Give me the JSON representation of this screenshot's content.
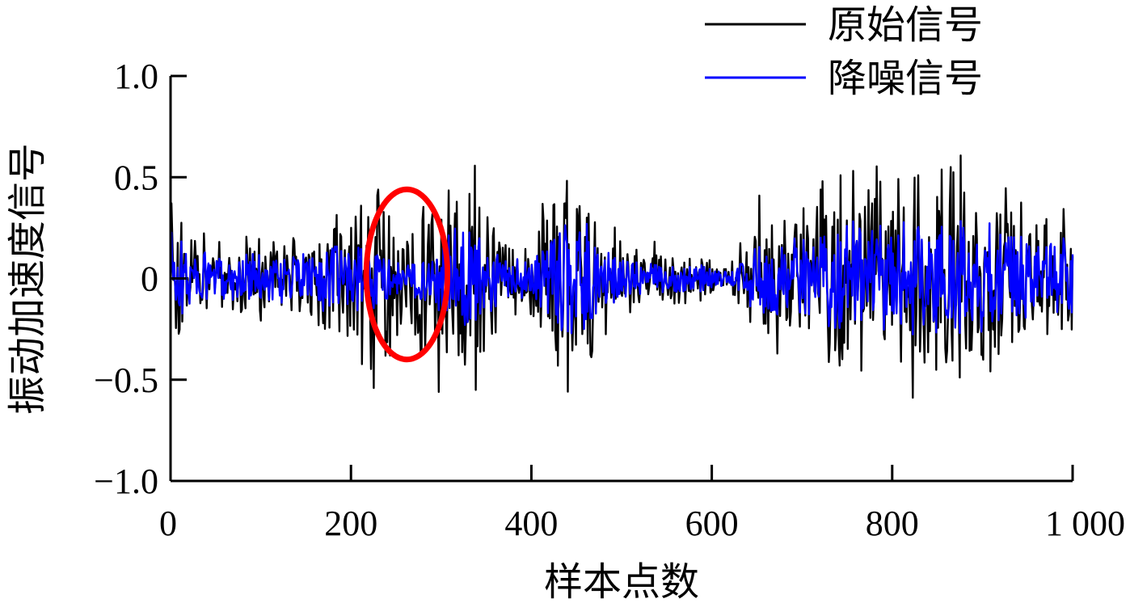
{
  "chart_data": {
    "type": "line",
    "title": "",
    "xlabel": "样本点数",
    "ylabel": "振动加速度信号",
    "xlim": [
      0,
      1000
    ],
    "ylim": [
      -1.0,
      1.0
    ],
    "x_ticks": [
      0,
      200,
      400,
      600,
      800,
      1000
    ],
    "x_tick_labels": [
      "0",
      "200",
      "400",
      "600",
      "800",
      "1 000"
    ],
    "y_ticks": [
      1.0,
      0.5,
      0,
      -0.5,
      -1.0
    ],
    "y_tick_labels": [
      "1.0",
      "0.5",
      "0",
      "−0.5",
      "−1.0"
    ],
    "grid": false,
    "legend_position": "top-right",
    "series": [
      {
        "name": "原始信号",
        "color": "#000000",
        "x_range": [
          0,
          1000
        ],
        "num_points": 1000,
        "envelope": {
          "x": [
            0,
            20,
            50,
            100,
            150,
            200,
            230,
            260,
            300,
            330,
            360,
            400,
            430,
            460,
            500,
            550,
            600,
            620,
            650,
            700,
            750,
            800,
            850,
            870,
            900,
            950,
            1000
          ],
          "amplitude": [
            0.45,
            0.3,
            0.15,
            0.22,
            0.2,
            0.45,
            0.55,
            0.25,
            0.5,
            0.65,
            0.3,
            0.15,
            0.55,
            0.45,
            0.2,
            0.15,
            0.1,
            0.05,
            0.35,
            0.35,
            0.55,
            0.5,
            0.55,
            0.55,
            0.5,
            0.35,
            0.3
          ]
        }
      },
      {
        "name": "降噪信号",
        "color": "#0000ff",
        "x_range": [
          0,
          1000
        ],
        "num_points": 1000,
        "envelope": {
          "x": [
            0,
            20,
            50,
            100,
            150,
            200,
            230,
            260,
            300,
            330,
            360,
            400,
            430,
            460,
            500,
            550,
            600,
            620,
            650,
            700,
            750,
            800,
            850,
            870,
            900,
            950,
            1000
          ],
          "amplitude": [
            0.3,
            0.18,
            0.1,
            0.13,
            0.12,
            0.22,
            0.15,
            0.06,
            0.18,
            0.3,
            0.15,
            0.08,
            0.3,
            0.28,
            0.1,
            0.08,
            0.06,
            0.03,
            0.2,
            0.2,
            0.3,
            0.28,
            0.3,
            0.3,
            0.28,
            0.2,
            0.2
          ]
        }
      }
    ],
    "annotations": [
      {
        "type": "ellipse",
        "color": "#ff0000",
        "center": [
          262,
          0.02
        ],
        "radius_x": 45,
        "radius_y": 0.42
      }
    ]
  }
}
